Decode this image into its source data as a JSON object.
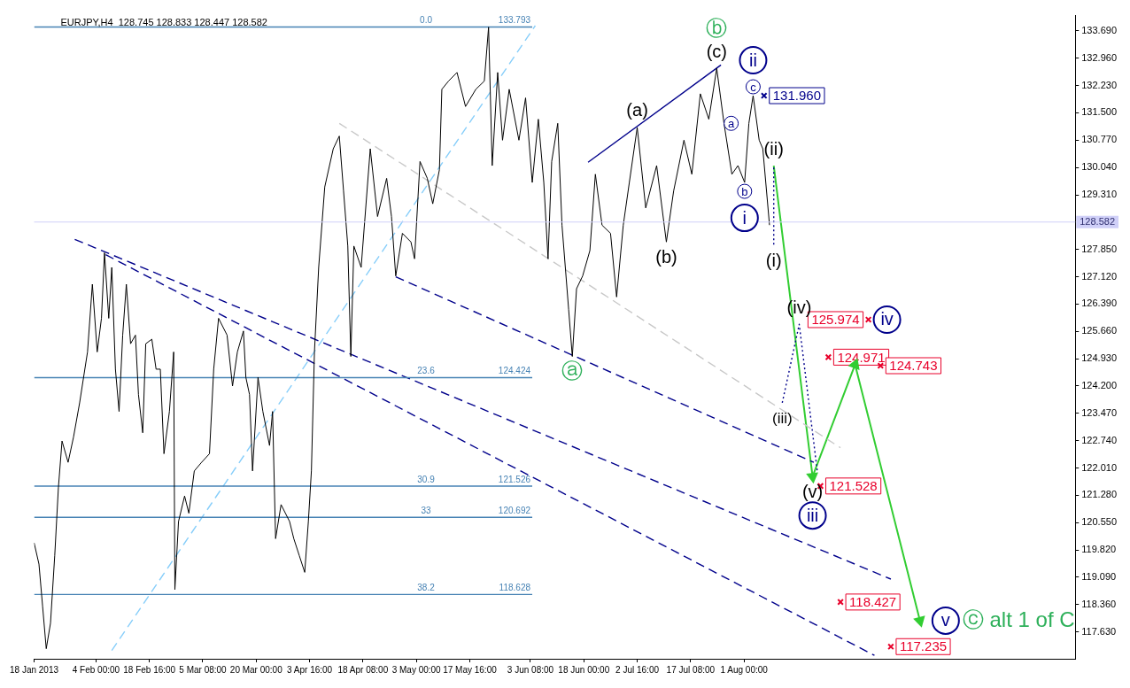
{
  "chart_data": {
    "type": "line",
    "title": "EURJPY,H4  128.745 128.833 128.447 128.582",
    "xlim": [
      "2013-01-18T00:00",
      "2013-10-31T00:00"
    ],
    "ylim": [
      116.91,
      134.1
    ],
    "xticks": [
      {
        "value": "2013-01-18T00:00",
        "label": "18 Jan 2013"
      },
      {
        "value": "2013-02-04T00:00",
        "label": "4 Feb 00:00"
      },
      {
        "value": "2013-02-18T16:00",
        "label": "18 Feb 16:00"
      },
      {
        "value": "2013-03-05T08:00",
        "label": "5 Mar 08:00"
      },
      {
        "value": "2013-03-20T00:00",
        "label": "20 Mar 00:00"
      },
      {
        "value": "2013-04-03T16:00",
        "label": "3 Apr 16:00"
      },
      {
        "value": "2013-04-18T08:00",
        "label": "18 Apr 08:00"
      },
      {
        "value": "2013-05-03T00:00",
        "label": "3 May 00:00"
      },
      {
        "value": "2013-05-17T16:00",
        "label": "17 May 16:00"
      },
      {
        "value": "2013-06-03T08:00",
        "label": "3 Jun 08:00"
      },
      {
        "value": "2013-06-18T00:00",
        "label": "18 Jun 00:00"
      },
      {
        "value": "2013-07-02T16:00",
        "label": "2 Jul 16:00"
      },
      {
        "value": "2013-07-17T08:00",
        "label": "17 Jul 08:00"
      },
      {
        "value": "2013-08-01T00:00",
        "label": "1 Aug 00:00"
      }
    ],
    "yticks": [
      {
        "value": 133.69,
        "label": "133.690"
      },
      {
        "value": 132.96,
        "label": "132.960"
      },
      {
        "value": 132.23,
        "label": "132.230"
      },
      {
        "value": 131.5,
        "label": "131.500"
      },
      {
        "value": 130.77,
        "label": "130.770"
      },
      {
        "value": 130.04,
        "label": "130.040"
      },
      {
        "value": 129.31,
        "label": "129.310"
      },
      {
        "value": 127.85,
        "label": "127.850"
      },
      {
        "value": 127.12,
        "label": "127.120"
      },
      {
        "value": 126.39,
        "label": "126.390"
      },
      {
        "value": 125.66,
        "label": "125.660"
      },
      {
        "value": 124.93,
        "label": "124.930"
      },
      {
        "value": 124.2,
        "label": "124.200"
      },
      {
        "value": 123.47,
        "label": "123.470"
      },
      {
        "value": 122.74,
        "label": "122.740"
      },
      {
        "value": 122.01,
        "label": "122.010"
      },
      {
        "value": 121.28,
        "label": "121.280"
      },
      {
        "value": 120.55,
        "label": "120.550"
      },
      {
        "value": 119.82,
        "label": "119.820"
      },
      {
        "value": 119.09,
        "label": "119.090"
      },
      {
        "value": 118.36,
        "label": "118.360"
      },
      {
        "value": 117.63,
        "label": "117.630"
      }
    ],
    "grid": false,
    "legend": false,
    "series": [
      {
        "color": "#000000",
        "x": [
          "2013-01-18T00:00",
          "2013-01-19T08:00",
          "2013-01-20T08:00",
          "2013-01-21T08:00",
          "2013-01-22T12:00",
          "2013-01-23T16:00",
          "2013-01-24T16:00",
          "2013-01-25T16:00",
          "2013-01-27T08:00",
          "2013-01-28T20:00",
          "2013-01-30T12:00",
          "2013-02-01T16:00",
          "2013-02-03T00:00",
          "2013-02-04T08:00",
          "2013-02-05T12:00",
          "2013-02-06T08:00",
          "2013-02-07T12:00",
          "2013-02-08T08:00",
          "2013-02-09T08:00",
          "2013-02-10T08:00",
          "2013-02-11T08:00",
          "2013-02-12T08:00",
          "2013-02-13T12:00",
          "2013-02-14T20:00",
          "2013-02-15T16:00",
          "2013-02-16T20:00",
          "2013-02-17T16:00",
          "2013-02-19T08:00",
          "2013-02-20T12:00",
          "2013-02-21T16:00",
          "2013-02-22T16:00",
          "2013-02-24T04:00",
          "2013-02-25T08:00",
          "2013-02-25T16:00",
          "2013-02-26T16:00",
          "2013-02-28T08:00",
          "2013-03-01T12:00",
          "2013-03-03T00:00",
          "2013-03-05T00:00",
          "2013-03-07T04:00",
          "2013-03-08T08:00",
          "2013-03-09T16:00",
          "2013-03-12T00:00",
          "2013-03-13T12:00",
          "2013-03-14T20:00",
          "2013-03-16T12:00",
          "2013-03-17T04:00",
          "2013-03-18T04:00",
          "2013-03-19T00:00",
          "2013-03-20T12:00",
          "2013-03-21T20:00",
          "2013-03-23T16:00",
          "2013-03-24T12:00",
          "2013-03-25T08:00",
          "2013-03-26T20:00",
          "2013-03-29T04:00",
          "2013-03-30T08:00",
          "2013-03-31T20:00",
          "2013-04-02T08:00",
          "2013-04-03T08:00",
          "2013-04-04T04:00",
          "2013-04-05T00:00",
          "2013-04-06T04:00",
          "2013-04-07T20:00",
          "2013-04-10T04:00",
          "2013-04-11T20:00",
          "2013-04-13T00:00",
          "2013-04-14T04:00",
          "2013-04-15T00:00",
          "2013-04-15T20:00",
          "2013-04-17T20:00",
          "2013-04-20T08:00",
          "2013-04-22T08:00",
          "2013-04-24T20:00",
          "2013-04-26T04:00",
          "2013-04-27T08:00",
          "2013-04-29T04:00",
          "2013-05-01T12:00",
          "2013-05-02T12:00",
          "2013-05-04T00:00",
          "2013-05-06T00:00",
          "2013-05-07T12:00",
          "2013-05-09T08:00",
          "2013-05-10T00:00",
          "2013-05-11T20:00",
          "2013-05-14T04:00",
          "2013-05-16T12:00",
          "2013-05-19T08:00",
          "2013-05-21T16:00",
          "2013-05-22T20:00",
          "2013-05-23T20:00",
          "2013-05-25T08:00",
          "2013-05-26T16:00",
          "2013-05-28T12:00",
          "2013-05-31T04:00",
          "2013-06-02T00:00",
          "2013-06-03T20:00",
          "2013-06-05T12:00",
          "2013-06-07T00:00",
          "2013-06-08T04:00",
          "2013-06-09T04:00",
          "2013-06-10T20:00",
          "2013-06-12T00:00",
          "2013-06-13T20:00",
          "2013-06-14T20:00",
          "2013-06-16T00:00",
          "2013-06-17T16:00",
          "2013-06-19T16:00",
          "2013-06-21T04:00",
          "2013-06-23T00:00",
          "2013-06-25T08:00",
          "2013-06-27T00:00",
          "2013-06-28T20:00",
          "2013-06-30T12:00",
          "2013-07-02T16:00",
          "2013-07-05T00:00",
          "2013-07-08T00:00",
          "2013-07-10T16:00",
          "2013-07-12T16:00",
          "2013-07-15T12:00",
          "2013-07-17T16:00",
          "2013-07-20T00:00",
          "2013-07-22T08:00",
          "2013-07-24T12:00",
          "2013-07-26T12:00",
          "2013-07-28T16:00",
          "2013-07-30T08:00",
          "2013-08-01T04:00",
          "2013-08-02T08:00",
          "2013-08-03T12:00",
          "2013-08-05T04:00",
          "2013-08-06T04:00",
          "2013-08-08T00:00"
        ],
        "values": [
          120.01,
          119.44,
          118.31,
          117.18,
          117.86,
          119.67,
          121.48,
          122.73,
          122.16,
          122.84,
          123.75,
          125.11,
          126.92,
          125.11,
          126.01,
          127.76,
          126.01,
          127.37,
          124.65,
          123.52,
          125.56,
          126.92,
          125.33,
          125.56,
          123.97,
          122.95,
          125.33,
          125.45,
          124.65,
          124.65,
          122.39,
          123.52,
          125.11,
          118.76,
          120.58,
          121.26,
          120.8,
          121.93,
          122.16,
          122.39,
          124.65,
          126.01,
          125.56,
          124.2,
          125.11,
          125.67,
          124.43,
          123.97,
          121.93,
          124.43,
          123.52,
          122.61,
          123.52,
          120.12,
          121.03,
          120.58,
          120.12,
          119.67,
          119.22,
          120.58,
          121.93,
          125.11,
          127.37,
          129.52,
          130.54,
          130.88,
          129.41,
          127.94,
          124.99,
          127.94,
          127.37,
          130.54,
          128.73,
          129.75,
          128.73,
          127.14,
          128.28,
          128.05,
          127.6,
          130.2,
          129.75,
          129.07,
          129.98,
          132.13,
          132.35,
          132.58,
          131.67,
          132.13,
          132.35,
          133.79,
          130.09,
          132.58,
          130.77,
          132.13,
          130.77,
          131.9,
          129.64,
          131.33,
          129.64,
          127.6,
          130.2,
          131.22,
          128.5,
          126.24,
          124.99,
          126.8,
          127.14,
          127.82,
          129.86,
          128.5,
          128.28,
          126.58,
          128.5,
          129.64,
          131.11,
          128.96,
          130.09,
          128.05,
          129.41,
          130.77,
          129.86,
          132.01,
          131.33,
          132.69,
          131.22,
          129.86,
          130.09,
          129.64,
          131.22,
          131.96,
          130.77,
          130.54,
          128.5
        ]
      },
      {
        "color": "#4682b4",
        "name": "0.0",
        "x": [
          "2013-01-18T00:00",
          "2013-06-03T20:00"
        ],
        "values": [
          133.793,
          133.793
        ],
        "value_labels": [
          null,
          "133.793"
        ]
      },
      {
        "color": "#4682b4",
        "name": "23.6",
        "x": [
          "2013-01-18T00:00",
          "2013-06-03T20:00"
        ],
        "values": [
          124.424,
          124.424
        ],
        "value_labels": [
          null,
          "124.424"
        ]
      },
      {
        "color": "#4682b4",
        "name": "30.9",
        "x": [
          "2013-01-18T00:00",
          "2013-06-03T20:00"
        ],
        "values": [
          121.526,
          121.526
        ],
        "value_labels": [
          null,
          "121.526"
        ]
      },
      {
        "color": "#4682b4",
        "name": "33",
        "x": [
          "2013-01-18T00:00",
          "2013-06-03T20:00"
        ],
        "values": [
          120.692,
          120.692
        ],
        "value_labels": [
          null,
          "120.692"
        ]
      },
      {
        "color": "#4682b4",
        "name": "38.2",
        "x": [
          "2013-01-18T00:00",
          "2013-06-03T20:00"
        ],
        "values": [
          118.628,
          118.628
        ],
        "value_labels": [
          null,
          "118.628"
        ]
      },
      {
        "color": "#87cefa",
        "line_style": "dashed",
        "x": [
          "2013-02-08T08:00",
          "2013-06-04T16:00"
        ],
        "values": [
          117.13,
          133.83
        ]
      },
      {
        "color": "#c8c8c8",
        "line_style": "dashed",
        "x": [
          "2013-04-11T20:00",
          "2013-08-27T12:00"
        ],
        "values": [
          131.22,
          122.55
        ]
      },
      {
        "color": "#00008b",
        "line_style": "dashed",
        "x": [
          "2013-01-29T04:00",
          "2013-09-10T08:00"
        ],
        "values": [
          128.12,
          119.04
        ]
      },
      {
        "color": "#00008b",
        "line_style": "dashed",
        "x": [
          "2013-02-06T16:00",
          "2013-09-05T20:00"
        ],
        "values": [
          127.71,
          117.0
        ]
      },
      {
        "color": "#00008b",
        "line_style": "dashed",
        "x": [
          "2013-04-27T08:00",
          "2013-08-20T04:00"
        ],
        "values": [
          127.12,
          122.16
        ]
      },
      {
        "color": "#00008b",
        "x": [
          "2013-06-19T04:00",
          "2013-07-25T16:00"
        ],
        "values": [
          130.18,
          132.78
        ]
      },
      {
        "color": "#00008b",
        "line_style": "dotted",
        "x": [
          "2013-08-09T04:00",
          "2013-08-09T04:00"
        ],
        "values": [
          130.04,
          127.94
        ]
      },
      {
        "color": "#00008b",
        "line_style": "dotted",
        "x": [
          "2013-08-11T12:00",
          "2013-08-16T04:00",
          "2013-08-21T04:00"
        ],
        "values": [
          123.75,
          125.85,
          121.89
        ]
      },
      {
        "color": "#32cd32",
        "marker": "triangle",
        "x": [
          "2013-08-09T04:00",
          "2013-08-19T20:00",
          "2013-08-31T12:00",
          "2013-09-18T08:00"
        ],
        "values": [
          130.09,
          121.78,
          124.77,
          117.93
        ]
      },
      {
        "type": "scatter",
        "marker": "cross",
        "color": "#00008b",
        "x": [
          "2013-08-06T12:00"
        ],
        "values": [
          131.96
        ],
        "value_labels": [
          "131.960"
        ]
      },
      {
        "type": "scatter",
        "marker": "cross",
        "color": "#e8002a",
        "x": [
          "2013-09-04T04:00",
          "2013-08-24T04:00",
          "2013-09-07T12:00",
          "2013-08-22T00:00",
          "2013-08-27T12:00",
          "2013-09-10T08:00"
        ],
        "values": [
          125.974,
          124.971,
          124.743,
          121.528,
          118.427,
          117.235
        ],
        "value_labels": [
          "125.974",
          "124.971",
          "124.743",
          "121.528",
          "118.427",
          "117.235"
        ]
      }
    ],
    "ref_lines": [
      {
        "axis": "y",
        "value": 128.582,
        "label": "128.582",
        "color": "#d0d0f8"
      }
    ],
    "annotations": [
      {
        "text": "(c)",
        "x": "2013-07-24T12:00",
        "y": 132.69
      },
      {
        "text": "ⓑ",
        "x": "2013-07-24T12:00",
        "y": 132.69
      },
      {
        "text": "c",
        "x": "2013-08-03T12:00",
        "y": 131.96
      },
      {
        "text": "ii",
        "x": "2013-08-03T12:00",
        "y": 131.96
      },
      {
        "text": "a",
        "x": "2013-08-02T08:00",
        "y": 131.22
      },
      {
        "text": "b",
        "x": "2013-08-01T04:00",
        "y": 129.64
      },
      {
        "text": "i",
        "x": "2013-08-01T04:00",
        "y": 129.64
      },
      {
        "text": "(ii)",
        "x": "2013-08-09T04:00",
        "y": 130.09
      },
      {
        "text": "(i)",
        "x": "2013-08-09T04:00",
        "y": 127.94
      },
      {
        "text": "(a)",
        "x": "2013-07-02T16:00",
        "y": 131.11
      },
      {
        "text": "(b)",
        "x": "2013-07-10T16:00",
        "y": 128.05
      },
      {
        "text": "ⓐ",
        "x": "2013-06-14T20:00",
        "y": 124.99
      },
      {
        "text": "(iv)",
        "x": "2013-08-16T04:00",
        "y": 125.85
      },
      {
        "text": "(iii)",
        "x": "2013-08-11T12:00",
        "y": 123.75
      },
      {
        "text": "(v)",
        "x": "2013-08-19T20:00",
        "y": 121.78
      },
      {
        "text": "iii",
        "x": "2013-08-19T20:00",
        "y": 121.78
      },
      {
        "text": "iv",
        "x": "2013-09-04T04:00",
        "y": 125.974
      },
      {
        "text": "v",
        "x": "2013-09-18T08:00",
        "y": 117.93
      },
      {
        "text": "ⓒ alt 1 of C",
        "x": "2013-09-18T08:00",
        "y": 117.93
      }
    ]
  }
}
